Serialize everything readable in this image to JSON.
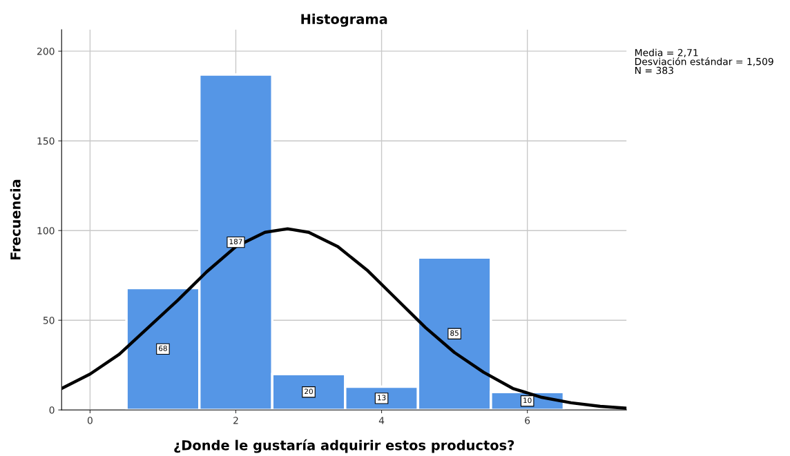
{
  "chart_data": {
    "type": "histogram",
    "title": "Histograma",
    "xlabel": "¿Donde le gustaría adquirir estos productos?",
    "ylabel": "Frecuencia",
    "bins": [
      0.5,
      1.5,
      2.5,
      3.5,
      4.5,
      5.5,
      6.5
    ],
    "values": [
      68,
      187,
      20,
      13,
      85,
      10
    ],
    "color": "#5596e6",
    "value_labels": [
      "68",
      "187",
      "20",
      "13",
      "85",
      "10"
    ],
    "series": [
      {
        "type": "line",
        "color": "#000000",
        "x": [
          -0.39,
          0,
          0.4,
          0.8,
          1.2,
          1.6,
          2.0,
          2.4,
          2.71,
          3.0,
          3.4,
          3.8,
          4.2,
          4.6,
          5.0,
          5.4,
          5.8,
          6.2,
          6.6,
          7.0,
          7.36
        ],
        "values": [
          12,
          20,
          31,
          46,
          61,
          77,
          91,
          99,
          101,
          99,
          91,
          78,
          62,
          46,
          32,
          21,
          12,
          7,
          4,
          2,
          1
        ]
      }
    ],
    "xlim": [
      -0.39,
      7.36
    ],
    "ylim": [
      0,
      212
    ],
    "xticks": [
      0,
      2,
      4,
      6
    ],
    "yticks": [
      0,
      50,
      100,
      150,
      200
    ],
    "grid": true,
    "line_style": "solid",
    "annotations": [
      "Media = 2,71",
      "Desviación estándar = 1,509",
      "N = 383"
    ]
  }
}
